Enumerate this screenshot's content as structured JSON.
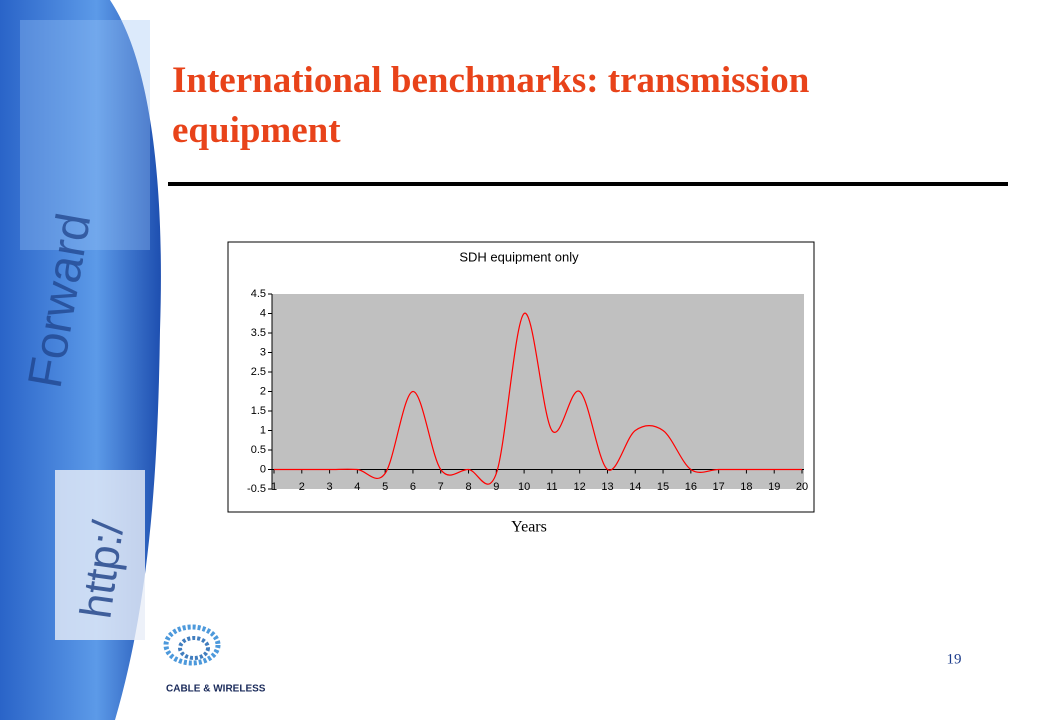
{
  "slide": {
    "title_lines": [
      "International benchmarks: transmission",
      "equipment"
    ],
    "page_number": "19",
    "logo_text": "CABLE & WIRELESS",
    "background_labels": [
      "Forward",
      "http:/"
    ]
  },
  "chart_data": {
    "type": "line",
    "title": "SDH equipment only",
    "x_label": "Years",
    "x": [
      1,
      2,
      3,
      4,
      5,
      6,
      7,
      8,
      9,
      10,
      11,
      12,
      13,
      14,
      15,
      16,
      17,
      18,
      19,
      20
    ],
    "series": [
      {
        "name": "SDH",
        "color": "#ff0000",
        "values": [
          0,
          0,
          0,
          0,
          -0.1,
          2,
          0,
          0,
          -0.1,
          4,
          1,
          2,
          0,
          1,
          1,
          0,
          0,
          0,
          0,
          0
        ]
      }
    ],
    "xlim": [
      1,
      20
    ],
    "xticks": [
      1,
      2,
      3,
      4,
      5,
      6,
      7,
      8,
      9,
      10,
      11,
      12,
      13,
      14,
      15,
      16,
      17,
      18,
      19,
      20
    ],
    "ylim": [
      -0.5,
      4.5
    ],
    "yticks": [
      -0.5,
      0,
      0.5,
      1,
      1.5,
      2,
      2.5,
      3,
      3.5,
      4,
      4.5
    ],
    "plot_background": "#c0c0c0",
    "grid": false
  }
}
